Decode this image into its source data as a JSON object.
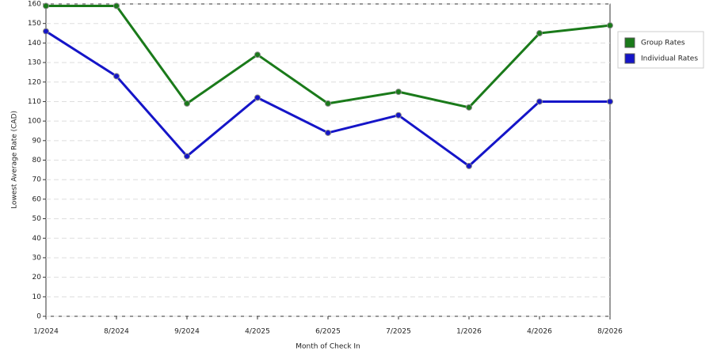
{
  "chart_data": {
    "type": "line",
    "x_label": "Month of Check In",
    "y_label": "Lowest Average Rate (CAD)",
    "categories": [
      "1/2024",
      "8/2024",
      "9/2024",
      "4/2025",
      "6/2025",
      "7/2025",
      "1/2026",
      "4/2026",
      "8/2026"
    ],
    "series": [
      {
        "name": "Group Rates",
        "color": "#1a7a1a",
        "values": [
          159,
          159,
          109,
          134,
          109,
          115,
          107,
          145,
          149
        ]
      },
      {
        "name": "Individual Rates",
        "color": "#1515c8",
        "values": [
          146,
          123,
          82,
          112,
          94,
          103,
          77,
          110,
          110
        ]
      }
    ],
    "ylim": [
      0,
      160
    ],
    "yticks": [
      0,
      10,
      20,
      30,
      40,
      50,
      60,
      70,
      80,
      90,
      100,
      110,
      120,
      130,
      140,
      150,
      160
    ],
    "grid": true,
    "legend": "right"
  }
}
